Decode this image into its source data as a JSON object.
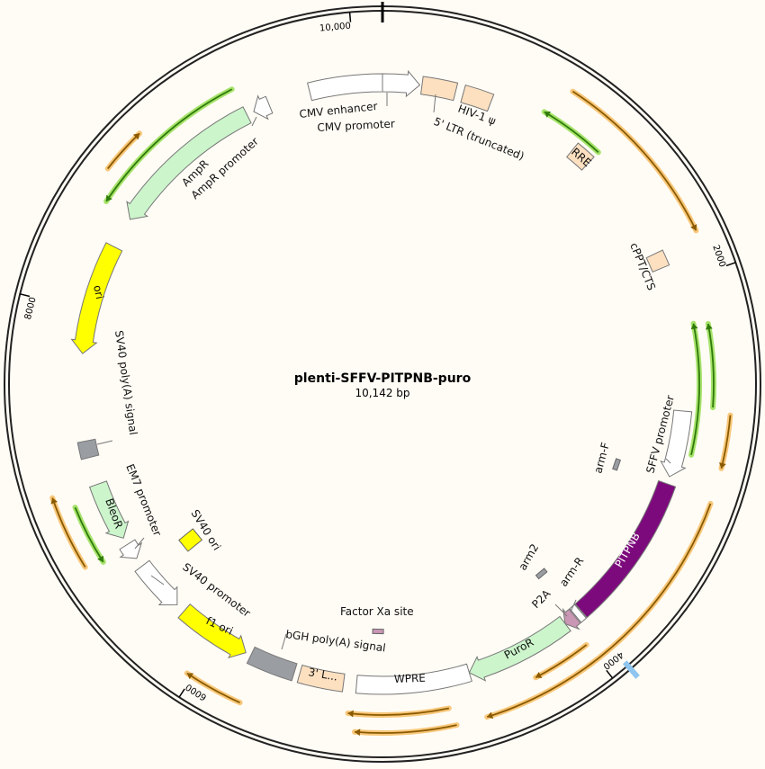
{
  "plasmid": {
    "name": "plenti-SFFV-PITPNB-puro",
    "length_label": "10,142 bp",
    "length": 10142
  },
  "ticks": [
    {
      "bp": 2000,
      "label": "2000"
    },
    {
      "bp": 4000,
      "label": "4000"
    },
    {
      "bp": 6000,
      "label": "6000"
    },
    {
      "bp": 8000,
      "label": "8000"
    },
    {
      "bp": 10000,
      "label": "10,000"
    }
  ],
  "colors": {
    "backbone": "#222222",
    "peach": "#fde0c0",
    "green": "#ccf5cc",
    "yellow": "#ffff00",
    "purple": "#7d0a7d",
    "gray": "#9a9da2",
    "white": "#ffffff",
    "pink": "#c996b4",
    "orange_primer": "#8a5a00",
    "orange_glow": "#f8c77a",
    "green_primer": "#2f7a0b",
    "green_glow": "#a6e36b",
    "blue_mark": "#8ec6f0"
  },
  "features": [
    {
      "name": "CMV enhancer",
      "start": 9748,
      "end": 10142,
      "dir": 0,
      "color": "white"
    },
    {
      "name": "CMV promoter",
      "start": 0,
      "end": 200,
      "dir": 1,
      "color": "white"
    },
    {
      "name": "5' LTR (truncated)",
      "start": 212,
      "end": 395,
      "dir": 0,
      "color": "peach"
    },
    {
      "name": "HIV-1 ψ",
      "start": 437,
      "end": 592,
      "dir": 0,
      "color": "peach"
    },
    {
      "name": "RRE",
      "start": 1100,
      "end": 1210,
      "dir": 0,
      "color": "peach"
    },
    {
      "name": "cPPT/CTS",
      "start": 1815,
      "end": 1900,
      "dir": 0,
      "color": "peach"
    },
    {
      "name": "SFFV promoter",
      "start": 2680,
      "end": 3040,
      "dir": 1,
      "color": "white"
    },
    {
      "name": "PITPNB",
      "start": 3080,
      "end": 3910,
      "dir": 0,
      "color": "purple"
    },
    {
      "name": "arm-R",
      "start": 3915,
      "end": 3950,
      "dir": 0,
      "color": "white"
    },
    {
      "name": "P2A",
      "start": 3955,
      "end": 4020,
      "dir": 1,
      "color": "pink"
    },
    {
      "name": "PuroR",
      "start": 4020,
      "end": 4600,
      "dir": 1,
      "color": "green"
    },
    {
      "name": "WPRE",
      "start": 4600,
      "end": 5210,
      "dir": 0,
      "color": "white"
    },
    {
      "name": "3' L...",
      "start": 5280,
      "end": 5520,
      "dir": 0,
      "color": "peach"
    },
    {
      "name": "bGH poly(A) signal",
      "start": 5550,
      "end": 5800,
      "dir": 0,
      "color": "gray"
    },
    {
      "name": "f1 ori",
      "start": 5830,
      "end": 6230,
      "dir": -1,
      "color": "yellow"
    },
    {
      "name": "SV40 promoter",
      "start": 6280,
      "end": 6560,
      "dir": -1,
      "color": "white"
    },
    {
      "name": "EM7 promoter",
      "start": 6610,
      "end": 6700,
      "dir": -1,
      "color": "white"
    },
    {
      "name": "BleoR",
      "start": 6740,
      "end": 7060,
      "dir": -1,
      "color": "green"
    },
    {
      "name": "SV40 poly(A) signal",
      "start": 7210,
      "end": 7300,
      "dir": 0,
      "color": "gray"
    },
    {
      "name": "ori",
      "start": 7770,
      "end": 8370,
      "dir": -1,
      "color": "yellow"
    },
    {
      "name": "AmpR",
      "start": 8540,
      "end": 9390,
      "dir": -1,
      "color": "green"
    },
    {
      "name": "AmpR promoter",
      "start": 9430,
      "end": 9520,
      "dir": -1,
      "color": "white"
    }
  ],
  "inner_features": [
    {
      "name": "arm-F",
      "bp": 3070,
      "color": "gray"
    },
    {
      "name": "arm2",
      "bp": 3945,
      "color": "gray"
    },
    {
      "name": "Factor Xa site",
      "bp": 5100,
      "color": "pink"
    },
    {
      "name": "SV40 ori",
      "bp": 6505,
      "color": "yellow"
    }
  ],
  "primers": [
    {
      "start": 930,
      "end": 1800,
      "dir": 1,
      "type": "orange",
      "ring": 2
    },
    {
      "start": 865,
      "end": 1210,
      "dir": -1,
      "type": "green",
      "ring": 1
    },
    {
      "start": 2225,
      "end": 2900,
      "dir": -1,
      "type": "green",
      "ring": 1
    },
    {
      "start": 2240,
      "end": 2650,
      "dir": -1,
      "type": "green",
      "ring": 1.5
    },
    {
      "start": 2680,
      "end": 2930,
      "dir": 1,
      "type": "orange",
      "ring": 2
    },
    {
      "start": 3100,
      "end": 4580,
      "dir": 1,
      "type": "orange",
      "ring": 2
    },
    {
      "start": 4000,
      "end": 4295,
      "dir": 1,
      "type": "orange",
      "ring": 1.5
    },
    {
      "start": 4745,
      "end": 5240,
      "dir": 1,
      "type": "orange",
      "ring": 1.5
    },
    {
      "start": 4725,
      "end": 5200,
      "dir": 1,
      "type": "orange",
      "ring": 2
    },
    {
      "start": 5750,
      "end": 6030,
      "dir": 1,
      "type": "orange",
      "ring": 2
    },
    {
      "start": 6715,
      "end": 7070,
      "dir": 1,
      "type": "orange",
      "ring": 2
    },
    {
      "start": 6690,
      "end": 6990,
      "dir": -1,
      "type": "green",
      "ring": 1.5
    },
    {
      "start": 8680,
      "end": 8900,
      "dir": 1,
      "type": "orange",
      "ring": 2
    },
    {
      "start": 8550,
      "end": 9380,
      "dir": -1,
      "type": "green",
      "ring": 1.5
    }
  ],
  "marks": [
    {
      "bp": 3915,
      "color": "blue_mark"
    }
  ]
}
